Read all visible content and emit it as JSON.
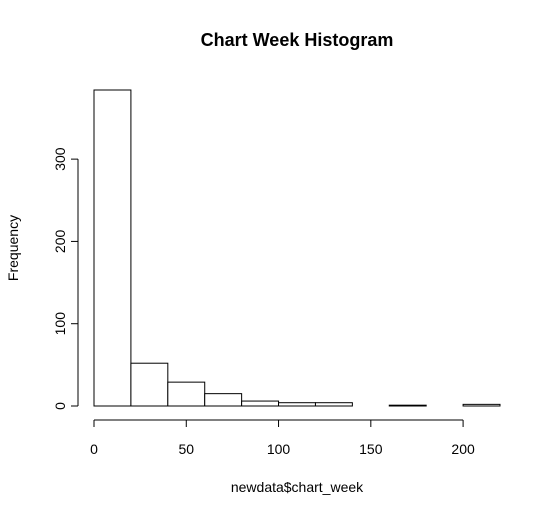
{
  "chart_data": {
    "type": "bar",
    "title": "Chart Week Histogram",
    "xlabel": "newdata$chart_week",
    "ylabel": "Frequency",
    "bins": [
      [
        0,
        20
      ],
      [
        20,
        40
      ],
      [
        40,
        60
      ],
      [
        60,
        80
      ],
      [
        80,
        100
      ],
      [
        100,
        120
      ],
      [
        120,
        140
      ],
      [
        140,
        160
      ],
      [
        160,
        180
      ],
      [
        180,
        200
      ],
      [
        200,
        220
      ]
    ],
    "values": [
      384,
      52,
      29,
      15,
      6,
      4,
      4,
      0,
      1,
      0,
      2
    ],
    "xlim": [
      0,
      220
    ],
    "ylim": [
      0,
      384
    ],
    "x_ticks": [
      0,
      50,
      100,
      150,
      200
    ],
    "y_ticks": [
      0,
      100,
      200,
      300
    ],
    "x_tick_labels": [
      "0",
      "50",
      "100",
      "150",
      "200"
    ],
    "y_tick_labels": [
      "0",
      "100",
      "200",
      "300"
    ],
    "grid": false,
    "colors": {
      "bar_fill": "#ffffff",
      "bar_stroke": "#000000",
      "text": "#000000",
      "background": "#ffffff"
    }
  }
}
